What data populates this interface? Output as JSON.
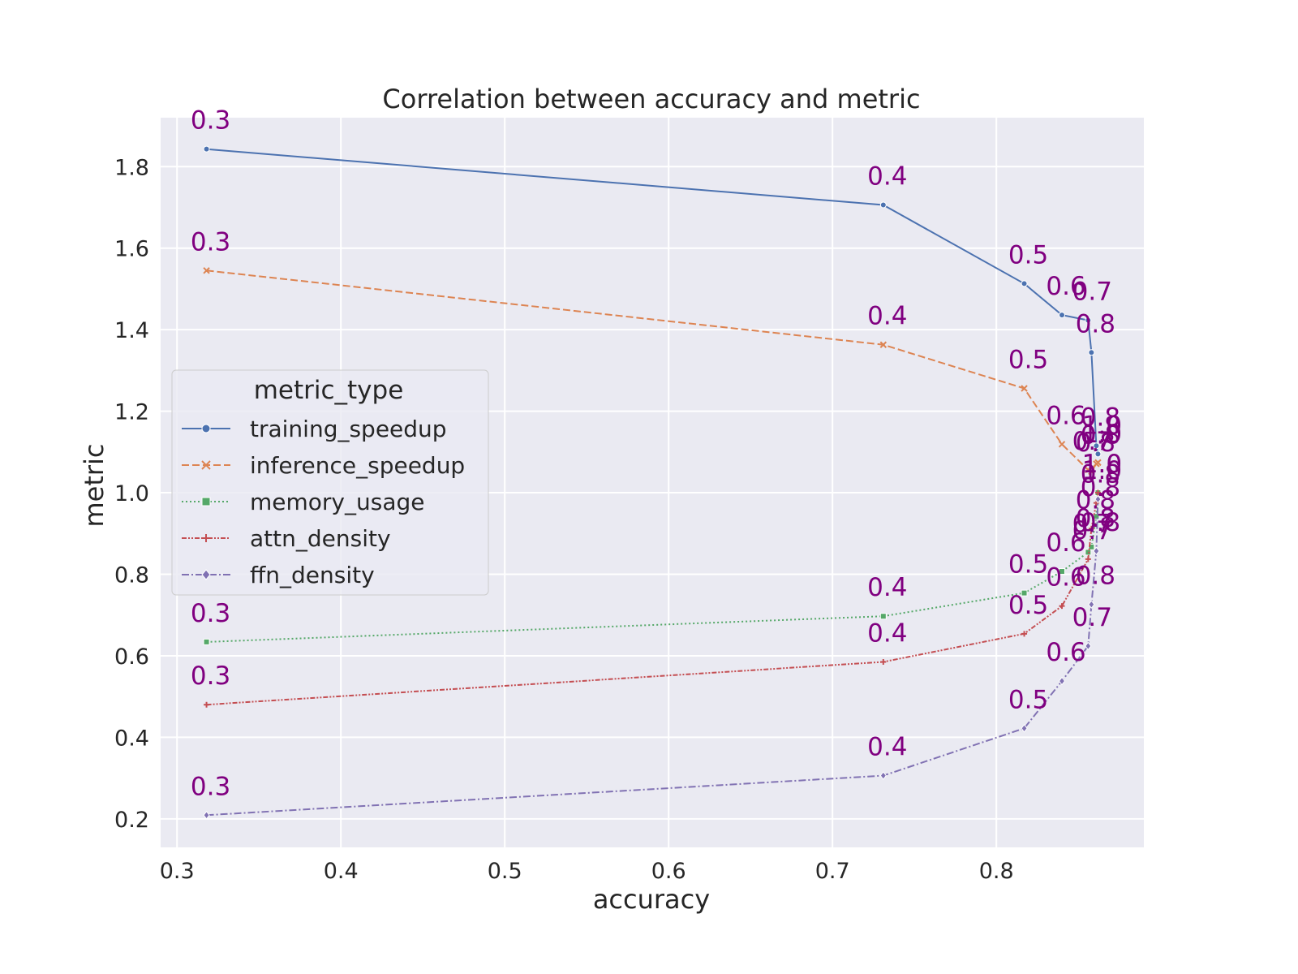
{
  "chart_data": {
    "type": "line",
    "title": "Correlation between accuracy and metric",
    "xlabel": "accuracy",
    "ylabel": "metric",
    "xlim": [
      0.29,
      0.89
    ],
    "ylim": [
      0.13,
      1.92
    ],
    "xticks": [
      "0.3",
      "0.4",
      "0.5",
      "0.6",
      "0.7",
      "0.8"
    ],
    "yticks": [
      "0.2",
      "0.4",
      "0.6",
      "0.8",
      "1.0",
      "1.2",
      "1.4",
      "1.6",
      "1.8"
    ],
    "grid": true,
    "legend": {
      "title": "metric_type",
      "placement": "center-left"
    },
    "background_color": "#eaeaf2",
    "label_color": "#800080",
    "point_labels": [
      "0.3",
      "0.4",
      "0.5",
      "0.6",
      "0.7",
      "0.8",
      "0.8",
      "1.0"
    ],
    "x": [
      0.318,
      0.731,
      0.817,
      0.84,
      0.856,
      0.858,
      0.861,
      0.862
    ],
    "series": [
      {
        "name": "training_speedup",
        "values": [
          1.843,
          1.706,
          1.513,
          1.436,
          1.423,
          1.344,
          1.115,
          1.095
        ],
        "color": "#4c72b0",
        "dash": "solid",
        "marker": "circle"
      },
      {
        "name": "inference_speedup",
        "values": [
          1.545,
          1.363,
          1.256,
          1.119,
          1.056,
          1.052,
          1.071,
          1.074
        ],
        "color": "#dd8452",
        "dash": "dashed",
        "marker": "x"
      },
      {
        "name": "memory_usage",
        "values": [
          0.634,
          0.697,
          0.754,
          0.807,
          0.854,
          0.867,
          0.942,
          1.0
        ],
        "color": "#55a868",
        "dash": "dotted",
        "marker": "square"
      },
      {
        "name": "attn_density",
        "values": [
          0.48,
          0.585,
          0.654,
          0.722,
          0.837,
          0.912,
          0.975,
          1.0
        ],
        "color": "#c44e52",
        "dash": "dashdotdot",
        "marker": "plus"
      },
      {
        "name": "ffn_density",
        "values": [
          0.209,
          0.306,
          0.422,
          0.538,
          0.624,
          0.726,
          0.857,
          0.984
        ],
        "color": "#8172b3",
        "dash": "dashdot",
        "marker": "diamond"
      }
    ]
  }
}
